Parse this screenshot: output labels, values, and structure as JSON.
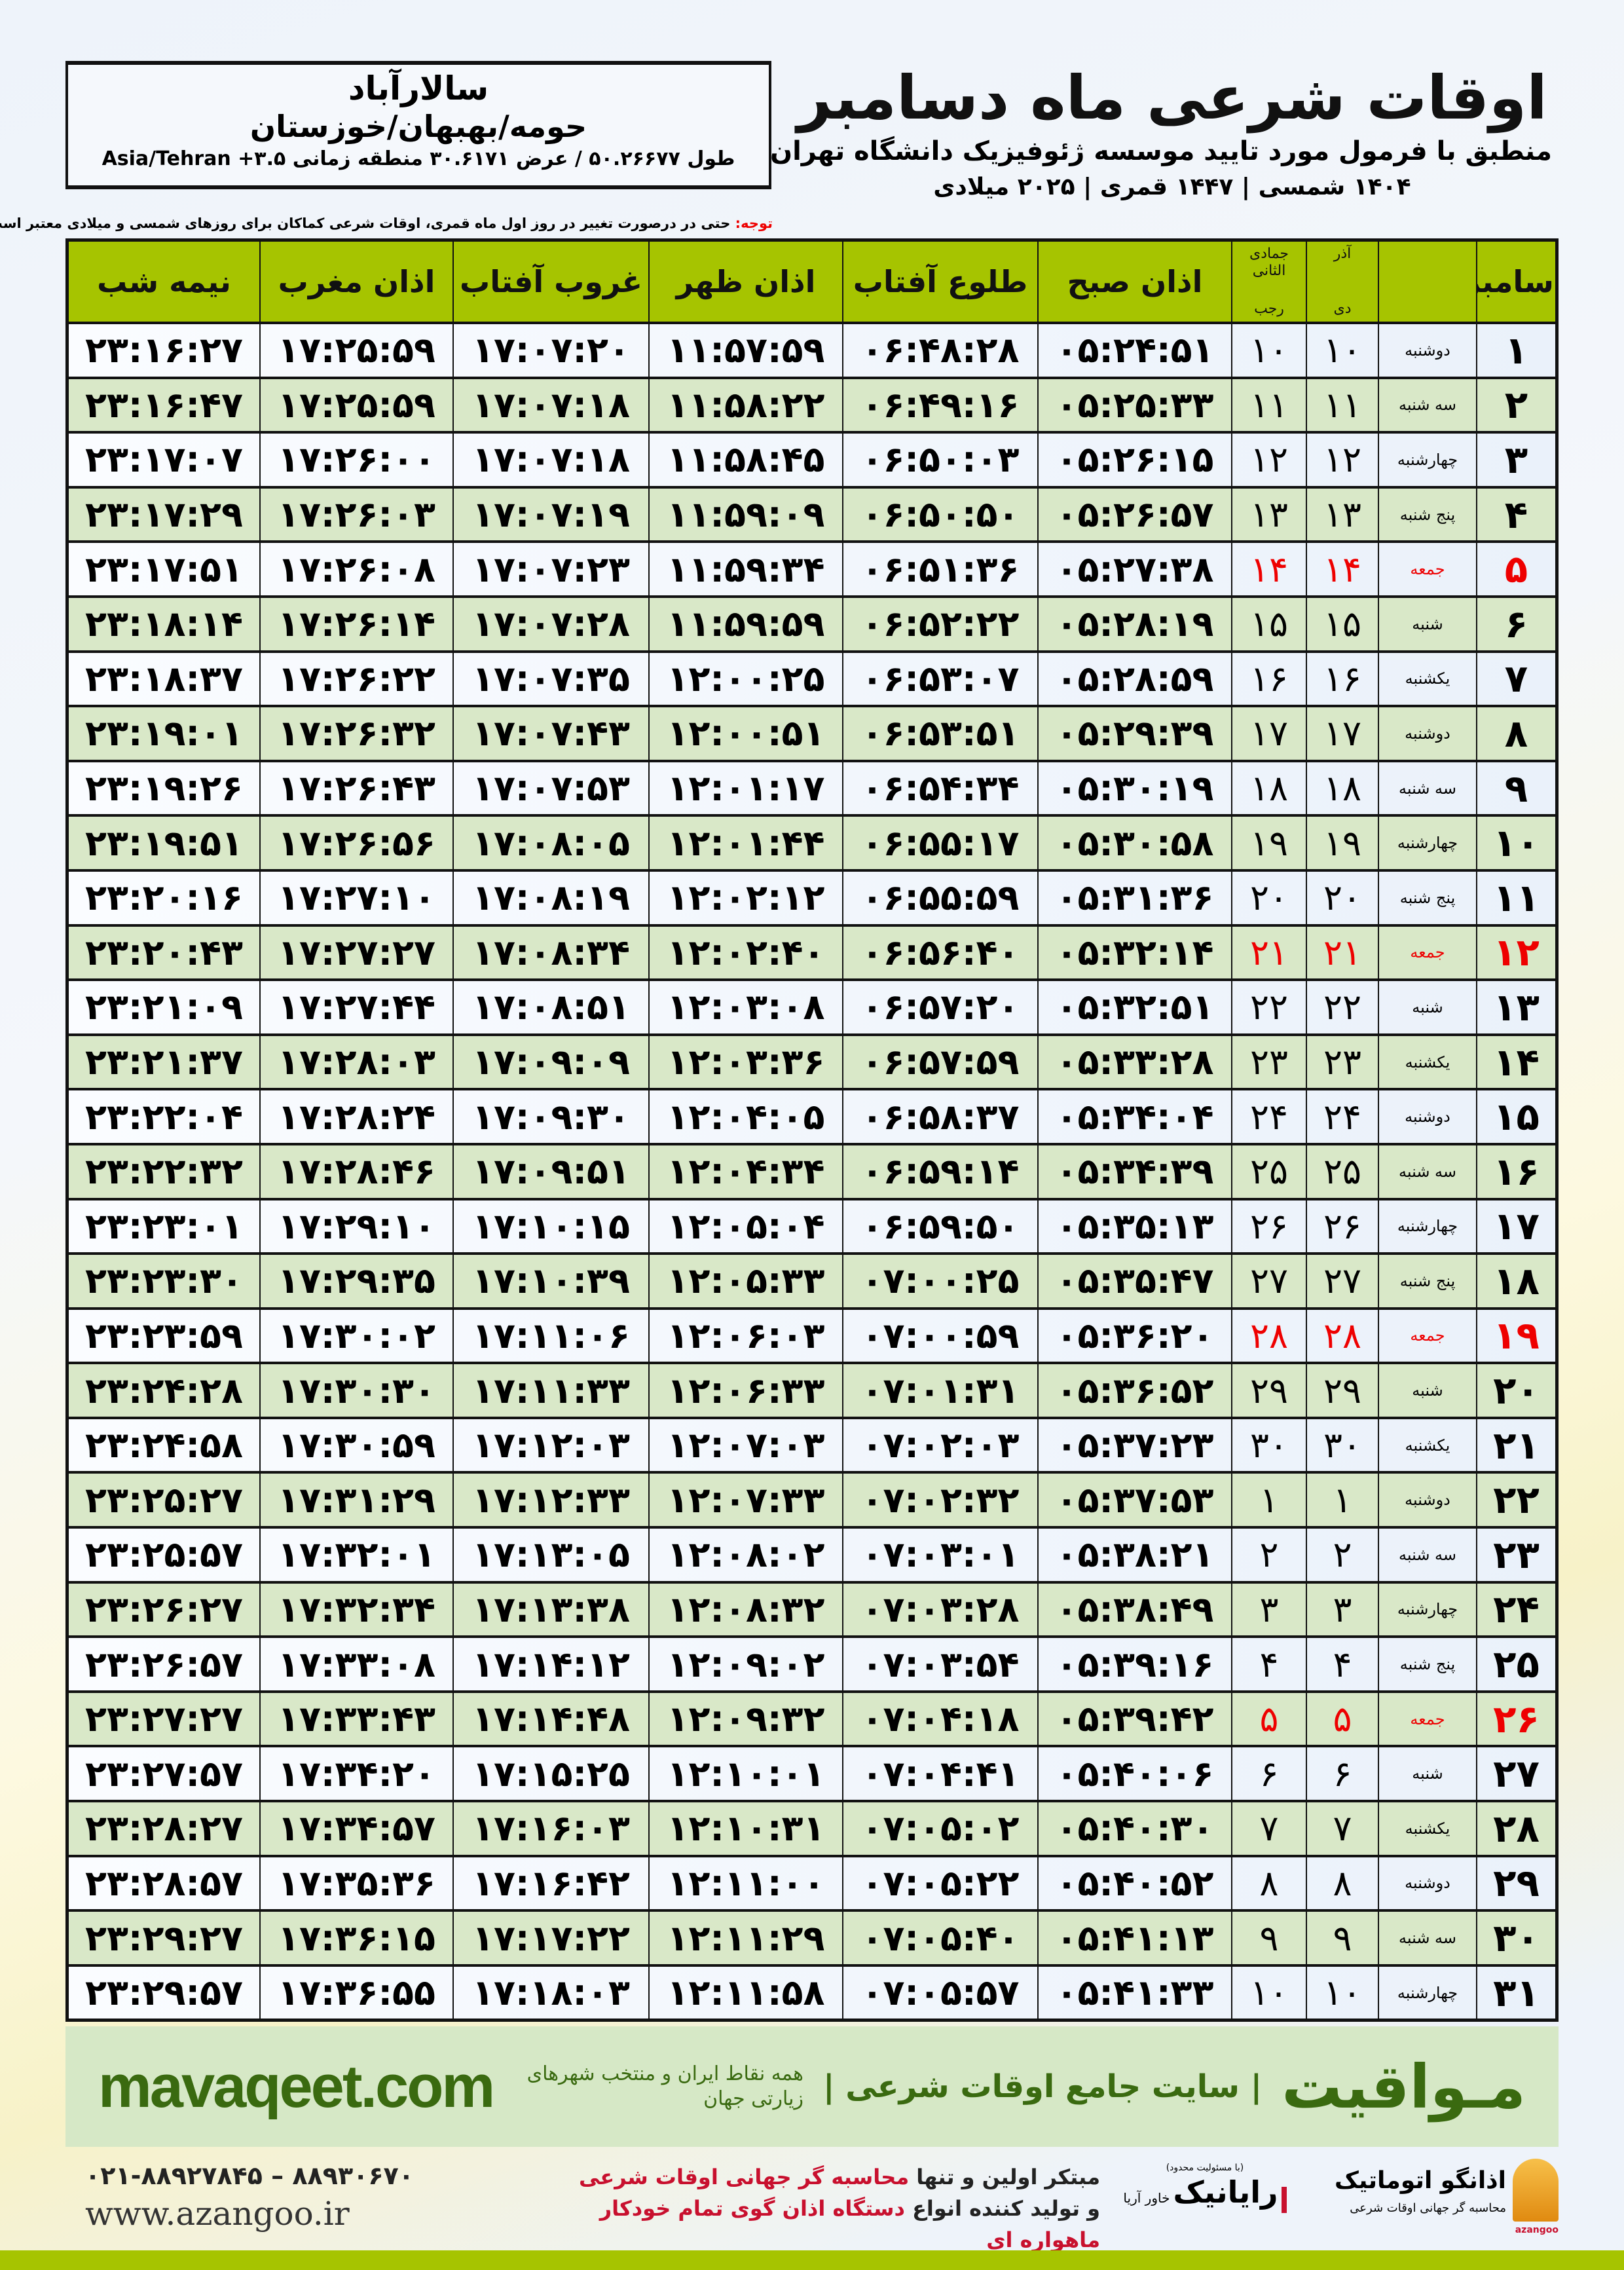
{
  "header": {
    "title": "اوقات شرعی ماه دسامبر",
    "subtitle": "منطبق با فرمول مورد تایید موسسه ژئوفیزیک دانشگاه تهران",
    "years": "۱۴۰۴ شمسی | ۱۴۴۷ قمری | ۲۰۲۵ میلادی"
  },
  "location": {
    "city": "سالارآباد",
    "region": "حومه/بهبهان/خوزستان",
    "coords": "طول ۵۰.۲۶۶۷۷ / عرض ۳۰.۶۱۷۱ منطقه زمانی ۳.۵+ Asia/Tehran"
  },
  "note": {
    "label": "توجه:",
    "text": " حتی در درصورت تغییر در روز اول ماه قمری، اوقات شرعی کماکان برای روزهای شمسی و میلادی معتبر است."
  },
  "columns": {
    "day": "دسامبر",
    "dey_top": "آذر",
    "dey_bottom": "دی",
    "rajab_top": "جمادی الثانی",
    "rajab_bottom": "رجب",
    "subh": "اذان صبح",
    "tulu": "طلوع آفتاب",
    "zuhr": "اذان ظهر",
    "ghurub": "غروب آفتاب",
    "maghrib": "اذان مغرب",
    "nimeshab": "نیمه شب"
  },
  "holiday_weekday": "جمعه",
  "colors": {
    "header_green": "#a6c400",
    "row_green": "#d9e8c8",
    "holiday_red": "#e00000",
    "brand_green": "#3a6a10"
  },
  "rows": [
    [
      "۱",
      "دوشنبه",
      "۱۰",
      "۱۰",
      "۰۵:۲۴:۵۱",
      "۰۶:۴۸:۲۸",
      "۱۱:۵۷:۵۹",
      "۱۷:۰۷:۲۰",
      "۱۷:۲۵:۵۹",
      "۲۳:۱۶:۲۷"
    ],
    [
      "۲",
      "سه شنبه",
      "۱۱",
      "۱۱",
      "۰۵:۲۵:۳۳",
      "۰۶:۴۹:۱۶",
      "۱۱:۵۸:۲۲",
      "۱۷:۰۷:۱۸",
      "۱۷:۲۵:۵۹",
      "۲۳:۱۶:۴۷"
    ],
    [
      "۳",
      "چهارشنبه",
      "۱۲",
      "۱۲",
      "۰۵:۲۶:۱۵",
      "۰۶:۵۰:۰۳",
      "۱۱:۵۸:۴۵",
      "۱۷:۰۷:۱۸",
      "۱۷:۲۶:۰۰",
      "۲۳:۱۷:۰۷"
    ],
    [
      "۴",
      "پنج شنبه",
      "۱۳",
      "۱۳",
      "۰۵:۲۶:۵۷",
      "۰۶:۵۰:۵۰",
      "۱۱:۵۹:۰۹",
      "۱۷:۰۷:۱۹",
      "۱۷:۲۶:۰۳",
      "۲۳:۱۷:۲۹"
    ],
    [
      "۵",
      "جمعه",
      "۱۴",
      "۱۴",
      "۰۵:۲۷:۳۸",
      "۰۶:۵۱:۳۶",
      "۱۱:۵۹:۳۴",
      "۱۷:۰۷:۲۳",
      "۱۷:۲۶:۰۸",
      "۲۳:۱۷:۵۱"
    ],
    [
      "۶",
      "شنبه",
      "۱۵",
      "۱۵",
      "۰۵:۲۸:۱۹",
      "۰۶:۵۲:۲۲",
      "۱۱:۵۹:۵۹",
      "۱۷:۰۷:۲۸",
      "۱۷:۲۶:۱۴",
      "۲۳:۱۸:۱۴"
    ],
    [
      "۷",
      "یکشنبه",
      "۱۶",
      "۱۶",
      "۰۵:۲۸:۵۹",
      "۰۶:۵۳:۰۷",
      "۱۲:۰۰:۲۵",
      "۱۷:۰۷:۳۵",
      "۱۷:۲۶:۲۲",
      "۲۳:۱۸:۳۷"
    ],
    [
      "۸",
      "دوشنبه",
      "۱۷",
      "۱۷",
      "۰۵:۲۹:۳۹",
      "۰۶:۵۳:۵۱",
      "۱۲:۰۰:۵۱",
      "۱۷:۰۷:۴۳",
      "۱۷:۲۶:۳۲",
      "۲۳:۱۹:۰۱"
    ],
    [
      "۹",
      "سه شنبه",
      "۱۸",
      "۱۸",
      "۰۵:۳۰:۱۹",
      "۰۶:۵۴:۳۴",
      "۱۲:۰۱:۱۷",
      "۱۷:۰۷:۵۳",
      "۱۷:۲۶:۴۳",
      "۲۳:۱۹:۲۶"
    ],
    [
      "۱۰",
      "چهارشنبه",
      "۱۹",
      "۱۹",
      "۰۵:۳۰:۵۸",
      "۰۶:۵۵:۱۷",
      "۱۲:۰۱:۴۴",
      "۱۷:۰۸:۰۵",
      "۱۷:۲۶:۵۶",
      "۲۳:۱۹:۵۱"
    ],
    [
      "۱۱",
      "پنج شنبه",
      "۲۰",
      "۲۰",
      "۰۵:۳۱:۳۶",
      "۰۶:۵۵:۵۹",
      "۱۲:۰۲:۱۲",
      "۱۷:۰۸:۱۹",
      "۱۷:۲۷:۱۰",
      "۲۳:۲۰:۱۶"
    ],
    [
      "۱۲",
      "جمعه",
      "۲۱",
      "۲۱",
      "۰۵:۳۲:۱۴",
      "۰۶:۵۶:۴۰",
      "۱۲:۰۲:۴۰",
      "۱۷:۰۸:۳۴",
      "۱۷:۲۷:۲۷",
      "۲۳:۲۰:۴۳"
    ],
    [
      "۱۳",
      "شنبه",
      "۲۲",
      "۲۲",
      "۰۵:۳۲:۵۱",
      "۰۶:۵۷:۲۰",
      "۱۲:۰۳:۰۸",
      "۱۷:۰۸:۵۱",
      "۱۷:۲۷:۴۴",
      "۲۳:۲۱:۰۹"
    ],
    [
      "۱۴",
      "یکشنبه",
      "۲۳",
      "۲۳",
      "۰۵:۳۳:۲۸",
      "۰۶:۵۷:۵۹",
      "۱۲:۰۳:۳۶",
      "۱۷:۰۹:۰۹",
      "۱۷:۲۸:۰۳",
      "۲۳:۲۱:۳۷"
    ],
    [
      "۱۵",
      "دوشنبه",
      "۲۴",
      "۲۴",
      "۰۵:۳۴:۰۴",
      "۰۶:۵۸:۳۷",
      "۱۲:۰۴:۰۵",
      "۱۷:۰۹:۳۰",
      "۱۷:۲۸:۲۴",
      "۲۳:۲۲:۰۴"
    ],
    [
      "۱۶",
      "سه شنبه",
      "۲۵",
      "۲۵",
      "۰۵:۳۴:۳۹",
      "۰۶:۵۹:۱۴",
      "۱۲:۰۴:۳۴",
      "۱۷:۰۹:۵۱",
      "۱۷:۲۸:۴۶",
      "۲۳:۲۲:۳۲"
    ],
    [
      "۱۷",
      "چهارشنبه",
      "۲۶",
      "۲۶",
      "۰۵:۳۵:۱۳",
      "۰۶:۵۹:۵۰",
      "۱۲:۰۵:۰۴",
      "۱۷:۱۰:۱۵",
      "۱۷:۲۹:۱۰",
      "۲۳:۲۳:۰۱"
    ],
    [
      "۱۸",
      "پنج شنبه",
      "۲۷",
      "۲۷",
      "۰۵:۳۵:۴۷",
      "۰۷:۰۰:۲۵",
      "۱۲:۰۵:۳۳",
      "۱۷:۱۰:۳۹",
      "۱۷:۲۹:۳۵",
      "۲۳:۲۳:۳۰"
    ],
    [
      "۱۹",
      "جمعه",
      "۲۸",
      "۲۸",
      "۰۵:۳۶:۲۰",
      "۰۷:۰۰:۵۹",
      "۱۲:۰۶:۰۳",
      "۱۷:۱۱:۰۶",
      "۱۷:۳۰:۰۲",
      "۲۳:۲۳:۵۹"
    ],
    [
      "۲۰",
      "شنبه",
      "۲۹",
      "۲۹",
      "۰۵:۳۶:۵۲",
      "۰۷:۰۱:۳۱",
      "۱۲:۰۶:۳۳",
      "۱۷:۱۱:۳۳",
      "۱۷:۳۰:۳۰",
      "۲۳:۲۴:۲۸"
    ],
    [
      "۲۱",
      "یکشنبه",
      "۳۰",
      "۳۰",
      "۰۵:۳۷:۲۳",
      "۰۷:۰۲:۰۳",
      "۱۲:۰۷:۰۳",
      "۱۷:۱۲:۰۳",
      "۱۷:۳۰:۵۹",
      "۲۳:۲۴:۵۸"
    ],
    [
      "۲۲",
      "دوشنبه",
      "۱",
      "۱",
      "۰۵:۳۷:۵۳",
      "۰۷:۰۲:۳۲",
      "۱۲:۰۷:۳۳",
      "۱۷:۱۲:۳۳",
      "۱۷:۳۱:۲۹",
      "۲۳:۲۵:۲۷"
    ],
    [
      "۲۳",
      "سه شنبه",
      "۲",
      "۲",
      "۰۵:۳۸:۲۱",
      "۰۷:۰۳:۰۱",
      "۱۲:۰۸:۰۲",
      "۱۷:۱۳:۰۵",
      "۱۷:۳۲:۰۱",
      "۲۳:۲۵:۵۷"
    ],
    [
      "۲۴",
      "چهارشنبه",
      "۳",
      "۳",
      "۰۵:۳۸:۴۹",
      "۰۷:۰۳:۲۸",
      "۱۲:۰۸:۳۲",
      "۱۷:۱۳:۳۸",
      "۱۷:۳۲:۳۴",
      "۲۳:۲۶:۲۷"
    ],
    [
      "۲۵",
      "پنج شنبه",
      "۴",
      "۴",
      "۰۵:۳۹:۱۶",
      "۰۷:۰۳:۵۴",
      "۱۲:۰۹:۰۲",
      "۱۷:۱۴:۱۲",
      "۱۷:۳۳:۰۸",
      "۲۳:۲۶:۵۷"
    ],
    [
      "۲۶",
      "جمعه",
      "۵",
      "۵",
      "۰۵:۳۹:۴۲",
      "۰۷:۰۴:۱۸",
      "۱۲:۰۹:۳۲",
      "۱۷:۱۴:۴۸",
      "۱۷:۳۳:۴۳",
      "۲۳:۲۷:۲۷"
    ],
    [
      "۲۷",
      "شنبه",
      "۶",
      "۶",
      "۰۵:۴۰:۰۶",
      "۰۷:۰۴:۴۱",
      "۱۲:۱۰:۰۱",
      "۱۷:۱۵:۲۵",
      "۱۷:۳۴:۲۰",
      "۲۳:۲۷:۵۷"
    ],
    [
      "۲۸",
      "یکشنبه",
      "۷",
      "۷",
      "۰۵:۴۰:۳۰",
      "۰۷:۰۵:۰۲",
      "۱۲:۱۰:۳۱",
      "۱۷:۱۶:۰۳",
      "۱۷:۳۴:۵۷",
      "۲۳:۲۸:۲۷"
    ],
    [
      "۲۹",
      "دوشنبه",
      "۸",
      "۸",
      "۰۵:۴۰:۵۲",
      "۰۷:۰۵:۲۲",
      "۱۲:۱۱:۰۰",
      "۱۷:۱۶:۴۲",
      "۱۷:۳۵:۳۶",
      "۲۳:۲۸:۵۷"
    ],
    [
      "۳۰",
      "سه شنبه",
      "۹",
      "۹",
      "۰۵:۴۱:۱۳",
      "۰۷:۰۵:۴۰",
      "۱۲:۱۱:۲۹",
      "۱۷:۱۷:۲۲",
      "۱۷:۳۶:۱۵",
      "۲۳:۲۹:۲۷"
    ],
    [
      "۳۱",
      "چهارشنبه",
      "۱۰",
      "۱۰",
      "۰۵:۴۱:۳۳",
      "۰۷:۰۵:۵۷",
      "۱۲:۱۱:۵۸",
      "۱۷:۱۸:۰۳",
      "۱۷:۳۶:۵۵",
      "۲۳:۲۹:۵۷"
    ]
  ],
  "banner": {
    "brand": "مـواقیت",
    "tagline": "| سایت جامع اوقات شرعی |",
    "sub": "همه نقاط ایران و منتخب شهرهای زیارتی جهان",
    "url": "mavaqeet.com"
  },
  "footer": {
    "phone": "۰۲۱-۸۸۹۲۷۸۴۵ – ۸۸۹۳۰۶۷۰",
    "website": "www.azangoo.ir",
    "line1_a": "مبتکر اولین و تنها ",
    "line1_b": "محاسبه گر جهانی اوقات شرعی",
    "line2_a": "و تولید کننده انواع ",
    "line2_b": "دستگاه اذان گوی تمام خودکار ماهواره ای",
    "logo_ray": {
      "small": "(با مسئولیت محدود)",
      "name": "رایانیک",
      "side": "خاور آریا"
    },
    "logo_az": {
      "name": "اذانگو اتوماتیک",
      "sub": "محاسبه گر جهانی اوقات شرعی",
      "en": "azangoo"
    }
  }
}
